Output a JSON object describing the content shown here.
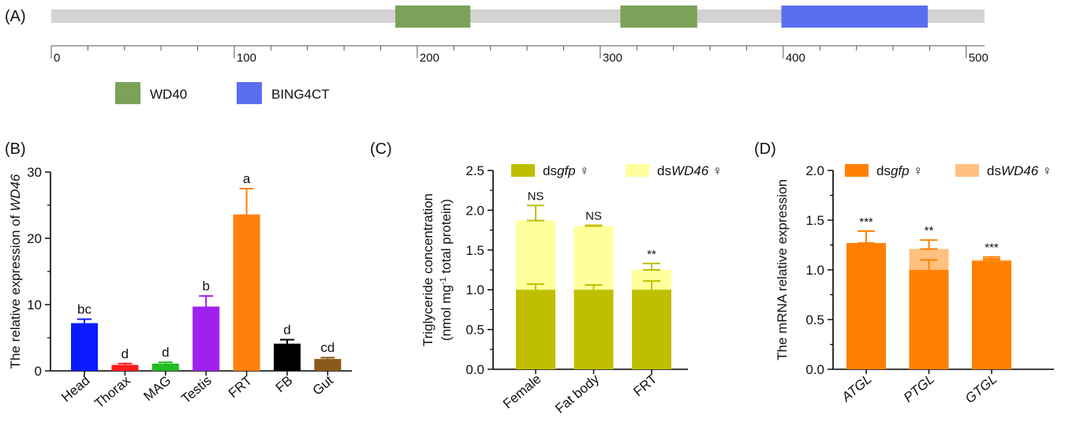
{
  "panels": {
    "a": {
      "label": "(A)"
    },
    "b": {
      "label": "(B)"
    },
    "c": {
      "label": "(C)"
    },
    "d": {
      "label": "(D)"
    }
  },
  "chart_data": [
    {
      "panel": "A",
      "type": "domain-map",
      "xlim": [
        0,
        510
      ],
      "ticks": [
        0,
        100,
        200,
        300,
        400,
        500
      ],
      "tick_labels": [
        "0",
        "100",
        "200",
        "300",
        "400",
        "500"
      ],
      "domains": [
        {
          "name": "WD40",
          "start": 188,
          "end": 229,
          "color": "#7ca25a"
        },
        {
          "name": "WD40",
          "start": 311,
          "end": 353,
          "color": "#7ca25a"
        },
        {
          "name": "BING4CT",
          "start": 399,
          "end": 479,
          "color": "#5b6ef0"
        }
      ],
      "legend": [
        {
          "name": "WD40",
          "color": "#7ca25a"
        },
        {
          "name": "BING4CT",
          "color": "#5b6ef0"
        }
      ],
      "backbone_color": "#d3d3d3"
    },
    {
      "panel": "B",
      "type": "bar",
      "ylabel_prefix": "The relative expression of ",
      "ylabel_gene": "WD46",
      "ylim": [
        0,
        30
      ],
      "yticks": [
        "0",
        "10",
        "20",
        "30"
      ],
      "categories": [
        "Head",
        "Thorax",
        "MAG",
        "Testis",
        "FRT",
        "FB",
        "Gut"
      ],
      "values": [
        7.2,
        0.9,
        1.1,
        9.7,
        23.6,
        4.1,
        1.8
      ],
      "errors": [
        0.6,
        0.2,
        0.2,
        1.6,
        3.9,
        0.6,
        0.2
      ],
      "letters": [
        "bc",
        "d",
        "d",
        "b",
        "a",
        "d",
        "cd"
      ],
      "colors": [
        "#0a1aff",
        "#ff1a1a",
        "#22bb22",
        "#a020f0",
        "#ff7f0e",
        "#000000",
        "#8b5a1b"
      ]
    },
    {
      "panel": "C",
      "type": "bar",
      "ylabel_line1": "Triglyceride concentration",
      "ylabel_line2_pre": "(nmol mg",
      "ylabel_line2_sup": "-1",
      "ylabel_line2_post": " total protein)",
      "ylim": [
        0,
        2.5
      ],
      "yticks": [
        "0.0",
        "0.5",
        "1.0",
        "1.5",
        "2.0",
        "2.5"
      ],
      "categories": [
        "Female",
        "Fat body",
        "FRT"
      ],
      "series": [
        {
          "name_pre": "ds",
          "name_gene": "gfp",
          "name_post": " ♀",
          "values": [
            1.0,
            1.0,
            1.0
          ],
          "errors": [
            0.07,
            0.06,
            0.11
          ],
          "color": "#bfbf00"
        },
        {
          "name_pre": "ds",
          "name_gene": "WD46",
          "name_post": " ♀",
          "values": [
            1.87,
            1.8,
            1.25
          ],
          "errors": [
            0.19,
            0.01,
            0.08
          ],
          "color": "#ffff9c"
        }
      ],
      "annotations": [
        "NS",
        "NS",
        "**"
      ],
      "legend_position": "top"
    },
    {
      "panel": "D",
      "type": "bar",
      "ylabel": "The mRNA relative expression",
      "ylim": [
        0,
        2.0
      ],
      "yticks": [
        "0.0",
        "0.5",
        "1.0",
        "1.5",
        "2.0"
      ],
      "categories": [
        "ATGL",
        "PTGL",
        "GTGL"
      ],
      "series": [
        {
          "name_pre": "ds",
          "name_gene": "gfp",
          "name_post": " ♀",
          "values": [
            1.27,
            1.0,
            1.09
          ],
          "errors": [
            0.12,
            0.1,
            0.02
          ],
          "color": "#ff8000"
        },
        {
          "name_pre": "ds",
          "name_gene": "WD46",
          "name_post": " ♀",
          "values": [
            1.27,
            1.21,
            1.1
          ],
          "errors": [
            0.0,
            0.09,
            0.03
          ],
          "color": "#ffc080"
        }
      ],
      "annotations": [
        "***",
        "**",
        "***"
      ],
      "legend_position": "top"
    }
  ]
}
